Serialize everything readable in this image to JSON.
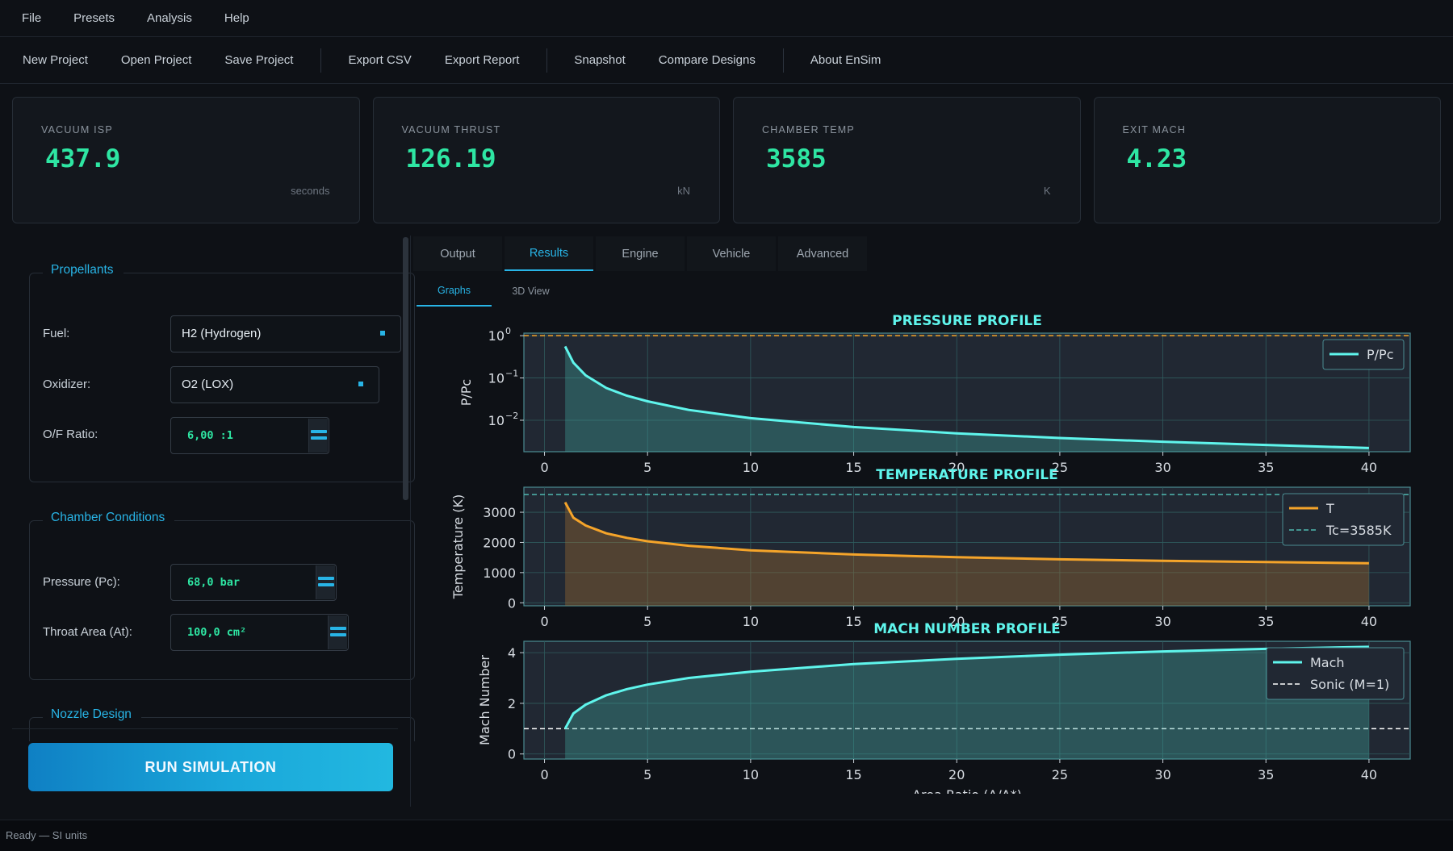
{
  "menubar": {
    "items": [
      "File",
      "Presets",
      "Analysis",
      "Help"
    ]
  },
  "toolbar": {
    "new_project": "New Project",
    "open_project": "Open Project",
    "save_project": "Save Project",
    "export_csv": "Export CSV",
    "export_report": "Export Report",
    "snapshot": "Snapshot",
    "compare_designs": "Compare Designs",
    "about": "About EnSim"
  },
  "cards": [
    {
      "label": "VACUUM ISP",
      "value": "437.9",
      "unit": "seconds"
    },
    {
      "label": "VACUUM THRUST",
      "value": "126.19",
      "unit": "kN"
    },
    {
      "label": "CHAMBER TEMP",
      "value": "3585",
      "unit": "K"
    },
    {
      "label": "EXIT MACH",
      "value": "4.23",
      "unit": ""
    }
  ],
  "propellants": {
    "title": "Propellants",
    "fuel_label": "Fuel:",
    "fuel_value": "H2 (Hydrogen)",
    "oxidizer_label": "Oxidizer:",
    "oxidizer_value": "O2 (LOX)",
    "of_label": "O/F Ratio:",
    "of_value": "6,00  :1"
  },
  "chamber": {
    "title": "Chamber Conditions",
    "pressure_label": "Pressure (Pc):",
    "pressure_value": "68,0  bar",
    "throat_label": "Throat Area (At):",
    "throat_value": "100,0  cm²"
  },
  "nozzle": {
    "title": "Nozzle Design"
  },
  "run_button": "RUN SIMULATION",
  "tabs": [
    "Output",
    "Results",
    "Engine",
    "Vehicle",
    "Advanced"
  ],
  "subtabs": [
    "Graphs",
    "3D View"
  ],
  "status": "Ready — SI units",
  "colors": {
    "accent": "#28b4e6",
    "value_green": "#2ee6a3",
    "cyan_line": "#5ff5ec",
    "orange_line": "#f5a42a",
    "plot_bg": "#212833"
  },
  "chart_data": [
    {
      "type": "line",
      "title": "PRESSURE PROFILE",
      "xlabel": "",
      "ylabel": "P/Pc",
      "yscale": "log",
      "xlim": [
        -1,
        42
      ],
      "ylim": [
        0.0018,
        1.15
      ],
      "xticks": [
        0,
        5,
        10,
        15,
        20,
        25,
        30,
        35,
        40
      ],
      "yticks": [
        1,
        0.1,
        0.01
      ],
      "ytick_labels": [
        "10",
        "10",
        "10"
      ],
      "ytick_exponents": [
        "0",
        "−1",
        "−2"
      ],
      "grid": true,
      "legend": "top-right",
      "series": [
        {
          "name": "P/Pc",
          "x": [
            1,
            1.4,
            2,
            3,
            4,
            5,
            7,
            10,
            15,
            20,
            25,
            30,
            35,
            40
          ],
          "y": [
            0.56,
            0.23,
            0.115,
            0.058,
            0.038,
            0.028,
            0.0175,
            0.0112,
            0.0069,
            0.0049,
            0.0038,
            0.0031,
            0.0026,
            0.0022
          ]
        }
      ],
      "reference_line": {
        "y": 1
      }
    },
    {
      "type": "line",
      "title": "TEMPERATURE PROFILE",
      "xlabel": "",
      "ylabel": "Temperature (K)",
      "xlim": [
        -1,
        42
      ],
      "ylim": [
        -100,
        3830
      ],
      "xticks": [
        0,
        5,
        10,
        15,
        20,
        25,
        30,
        35,
        40
      ],
      "yticks": [
        0,
        1000,
        2000,
        3000
      ],
      "grid": true,
      "legend": "top-right",
      "series": [
        {
          "name": "T",
          "x": [
            1,
            1.4,
            2,
            3,
            4,
            5,
            7,
            10,
            15,
            20,
            25,
            30,
            35,
            40
          ],
          "y": [
            3330,
            2820,
            2560,
            2300,
            2150,
            2040,
            1890,
            1740,
            1600,
            1510,
            1440,
            1390,
            1350,
            1310
          ]
        },
        {
          "name": "Tc=3585K",
          "y_const": 3585,
          "style": "dashed"
        }
      ]
    },
    {
      "type": "line",
      "title": "MACH NUMBER PROFILE",
      "xlabel": "Area Ratio (A/A*)",
      "ylabel": "Mach Number",
      "xlim": [
        -1,
        42
      ],
      "ylim": [
        -0.2,
        4.45
      ],
      "xticks": [
        0,
        5,
        10,
        15,
        20,
        25,
        30,
        35,
        40
      ],
      "yticks": [
        0,
        2,
        4
      ],
      "grid": true,
      "legend": "top-right",
      "series": [
        {
          "name": "Mach",
          "x": [
            1,
            1.4,
            2,
            3,
            4,
            5,
            7,
            10,
            15,
            20,
            25,
            30,
            35,
            40
          ],
          "y": [
            1.0,
            1.6,
            1.95,
            2.32,
            2.56,
            2.74,
            3.0,
            3.25,
            3.55,
            3.76,
            3.92,
            4.05,
            4.15,
            4.23
          ]
        },
        {
          "name": "Sonic (M=1)",
          "y_const": 1,
          "style": "dashed"
        }
      ]
    }
  ]
}
